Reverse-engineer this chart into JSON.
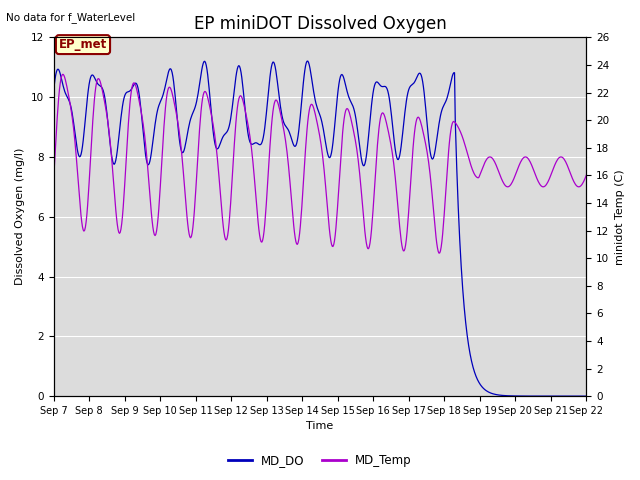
{
  "title": "EP miniDOT Dissolved Oxygen",
  "top_left_text": "No data for f_WaterLevel",
  "annotation_box": "EP_met",
  "xlabel": "Time",
  "ylabel_left": "Dissolved Oxygen (mg/l)",
  "ylabel_right": "minidot Temp (C)",
  "ylim_left": [
    0,
    12
  ],
  "ylim_right": [
    0,
    26
  ],
  "yticks_left": [
    0,
    2,
    4,
    6,
    8,
    10,
    12
  ],
  "yticks_right": [
    0,
    2,
    4,
    6,
    8,
    10,
    12,
    14,
    16,
    18,
    20,
    22,
    24,
    26
  ],
  "xtick_labels": [
    "Sep 7",
    "Sep 8",
    "Sep 9",
    "Sep 10",
    "Sep 11",
    "Sep 12",
    "Sep 13",
    "Sep 14",
    "Sep 15",
    "Sep 16",
    "Sep 17",
    "Sep 18",
    "Sep 19",
    "Sep 20",
    "Sep 21",
    "Sep 22"
  ],
  "do_color": "#0000bb",
  "temp_color": "#aa00cc",
  "legend_do": "MD_DO",
  "legend_temp": "MD_Temp",
  "background_color": "#dcdcdc",
  "grid_color": "white",
  "title_fontsize": 12,
  "label_fontsize": 8,
  "tick_fontsize": 7.5,
  "annotation_facecolor": "#ffffcc",
  "annotation_edgecolor": "#8b0000",
  "annotation_textcolor": "#8b0000"
}
